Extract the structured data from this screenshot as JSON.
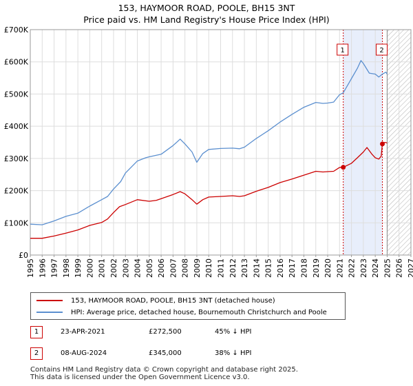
{
  "title": "153, HAYMOOR ROAD, POOLE, BH15 3NT",
  "subtitle": "Price paid vs. HM Land Registry's House Price Index (HPI)",
  "chart_data": {
    "type": "line",
    "xlim": [
      1995,
      2027
    ],
    "ylim": [
      0,
      700000
    ],
    "x_ticks": [
      "1995",
      "1996",
      "1997",
      "1998",
      "1999",
      "2000",
      "2001",
      "2002",
      "2003",
      "2004",
      "2005",
      "2006",
      "2007",
      "2008",
      "2009",
      "2010",
      "2011",
      "2012",
      "2013",
      "2014",
      "2015",
      "2016",
      "2017",
      "2018",
      "2019",
      "2020",
      "2021",
      "2022",
      "2023",
      "2024",
      "2025",
      "2026",
      "2027"
    ],
    "y_ticks": [
      {
        "value": 0,
        "label": "£0"
      },
      {
        "value": 100000,
        "label": "£100K"
      },
      {
        "value": 200000,
        "label": "£200K"
      },
      {
        "value": 300000,
        "label": "£300K"
      },
      {
        "value": 400000,
        "label": "£400K"
      },
      {
        "value": 500000,
        "label": "£500K"
      },
      {
        "value": 600000,
        "label": "£600K"
      },
      {
        "value": 700000,
        "label": "£700K"
      }
    ],
    "grid": true,
    "shaded_region": [
      2021.31,
      2024.6
    ],
    "hatched_from": 2025.0,
    "series": [
      {
        "name": "153, HAYMOOR ROAD, POOLE, BH15 3NT (detached house)",
        "color": "#cc0000",
        "points": [
          [
            1995.0,
            52000
          ],
          [
            1996.0,
            52000
          ],
          [
            1997.0,
            59000
          ],
          [
            1998.0,
            68000
          ],
          [
            1999.0,
            78000
          ],
          [
            2000.0,
            92000
          ],
          [
            2001.0,
            101000
          ],
          [
            2001.5,
            112000
          ],
          [
            2002.0,
            132000
          ],
          [
            2002.5,
            150000
          ],
          [
            2003.0,
            157000
          ],
          [
            2004.0,
            172000
          ],
          [
            2005.0,
            167000
          ],
          [
            2005.6,
            170000
          ],
          [
            2006.0,
            175000
          ],
          [
            2007.0,
            188000
          ],
          [
            2007.6,
            197000
          ],
          [
            2008.0,
            190000
          ],
          [
            2008.6,
            172000
          ],
          [
            2009.0,
            158000
          ],
          [
            2009.5,
            172000
          ],
          [
            2010.0,
            180000
          ],
          [
            2011.0,
            182000
          ],
          [
            2012.0,
            184000
          ],
          [
            2012.6,
            182000
          ],
          [
            2013.0,
            184000
          ],
          [
            2014.0,
            198000
          ],
          [
            2015.0,
            210000
          ],
          [
            2016.0,
            225000
          ],
          [
            2017.0,
            236000
          ],
          [
            2018.0,
            248000
          ],
          [
            2019.0,
            260000
          ],
          [
            2019.6,
            258000
          ],
          [
            2020.0,
            259000
          ],
          [
            2020.5,
            260000
          ],
          [
            2021.0,
            272000
          ],
          [
            2021.31,
            272500
          ],
          [
            2022.0,
            285000
          ],
          [
            2022.5,
            302000
          ],
          [
            2023.0,
            320000
          ],
          [
            2023.3,
            334000
          ],
          [
            2023.7,
            314000
          ],
          [
            2024.0,
            302000
          ],
          [
            2024.3,
            298000
          ],
          [
            2024.5,
            307000
          ],
          [
            2024.6,
            345000
          ],
          [
            2024.8,
            350000
          ],
          [
            2025.0,
            348000
          ]
        ]
      },
      {
        "name": "HPI: Average price, detached house, Bournemouth Christchurch and Poole",
        "color": "#5b8fcf",
        "points": [
          [
            1995.0,
            96000
          ],
          [
            1996.0,
            94000
          ],
          [
            1997.0,
            106000
          ],
          [
            1998.0,
            120000
          ],
          [
            1999.0,
            130000
          ],
          [
            2000.0,
            152000
          ],
          [
            2001.0,
            172000
          ],
          [
            2001.5,
            182000
          ],
          [
            2002.0,
            205000
          ],
          [
            2002.6,
            228000
          ],
          [
            2003.0,
            255000
          ],
          [
            2004.0,
            292000
          ],
          [
            2004.7,
            302000
          ],
          [
            2005.0,
            305000
          ],
          [
            2006.0,
            313000
          ],
          [
            2007.0,
            340000
          ],
          [
            2007.6,
            360000
          ],
          [
            2008.0,
            345000
          ],
          [
            2008.6,
            320000
          ],
          [
            2009.0,
            288000
          ],
          [
            2009.5,
            315000
          ],
          [
            2010.0,
            328000
          ],
          [
            2011.0,
            331000
          ],
          [
            2012.0,
            332000
          ],
          [
            2012.6,
            330000
          ],
          [
            2013.0,
            335000
          ],
          [
            2014.0,
            362000
          ],
          [
            2015.0,
            386000
          ],
          [
            2016.0,
            413000
          ],
          [
            2017.0,
            437000
          ],
          [
            2018.0,
            459000
          ],
          [
            2019.0,
            474000
          ],
          [
            2019.6,
            471000
          ],
          [
            2020.0,
            472000
          ],
          [
            2020.5,
            475000
          ],
          [
            2021.0,
            498000
          ],
          [
            2021.31,
            504000
          ],
          [
            2022.0,
            548000
          ],
          [
            2022.5,
            580000
          ],
          [
            2022.8,
            604000
          ],
          [
            2023.0,
            595000
          ],
          [
            2023.5,
            565000
          ],
          [
            2024.0,
            562000
          ],
          [
            2024.3,
            553000
          ],
          [
            2024.6,
            562000
          ],
          [
            2024.9,
            568000
          ],
          [
            2025.0,
            562000
          ]
        ]
      }
    ],
    "sales": [
      {
        "marker": "1",
        "x": 2021.31,
        "value": 272500
      },
      {
        "marker": "2",
        "x": 2024.6,
        "value": 345000
      }
    ]
  },
  "legend": [
    {
      "label": "153, HAYMOOR ROAD, POOLE, BH15 3NT (detached house)",
      "color": "#cc0000"
    },
    {
      "label": "HPI: Average price, detached house, Bournemouth Christchurch and Poole",
      "color": "#5b8fcf"
    }
  ],
  "sales_table": [
    {
      "marker": "1",
      "date": "23-APR-2021",
      "price": "£272,500",
      "hpi_diff": "45% ↓ HPI"
    },
    {
      "marker": "2",
      "date": "08-AUG-2024",
      "price": "£345,000",
      "hpi_diff": "38% ↓ HPI"
    }
  ],
  "footer": {
    "line1": "Contains HM Land Registry data © Crown copyright and database right 2025.",
    "line2": "This data is licensed under the Open Government Licence v3.0."
  }
}
